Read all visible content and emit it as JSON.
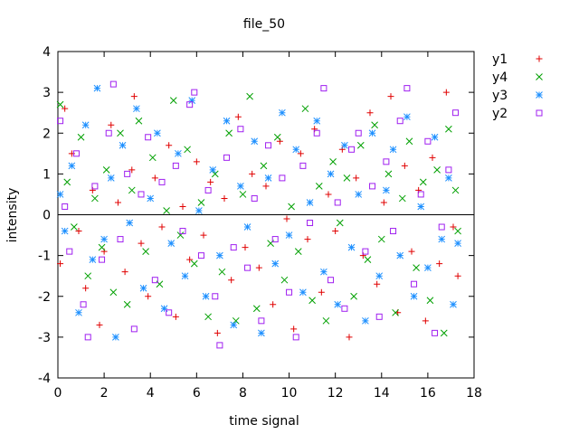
{
  "chart_data": {
    "type": "scatter",
    "title": "file_50",
    "xlabel": "time signal",
    "ylabel": "intensity",
    "xlim": [
      0,
      18
    ],
    "ylim": [
      -4,
      4
    ],
    "x_ticks": [
      0,
      2,
      4,
      6,
      8,
      10,
      12,
      14,
      16,
      18
    ],
    "y_ticks": [
      -4,
      -3,
      -2,
      -1,
      0,
      1,
      2,
      3,
      4
    ],
    "x_tick_labels": [
      "0",
      "2",
      "4",
      "6",
      "8",
      "10",
      "12",
      "14",
      "16",
      "18"
    ],
    "y_tick_labels": [
      "-4",
      "-3",
      "-2",
      "-1",
      "0",
      "1",
      "2",
      "3",
      "4"
    ],
    "zero_line": true,
    "grid": false,
    "legend_position": "outside-top-right",
    "series": [
      {
        "name": "y1",
        "color": "#e00000",
        "marker": "plus",
        "key": "y1"
      },
      {
        "name": "y4",
        "color": "#00a000",
        "marker": "cross",
        "key": "y4"
      },
      {
        "name": "y3",
        "color": "#1e90ff",
        "marker": "star",
        "key": "y3"
      },
      {
        "name": "y2",
        "color": "#a020f0",
        "marker": "square",
        "key": "y2"
      }
    ],
    "points": {
      "y1": [
        [
          0.1,
          -1.2
        ],
        [
          0.3,
          2.6
        ],
        [
          0.6,
          1.5
        ],
        [
          0.9,
          -0.4
        ],
        [
          1.2,
          -1.8
        ],
        [
          1.5,
          0.6
        ],
        [
          1.8,
          -2.7
        ],
        [
          2.0,
          -0.9
        ],
        [
          2.3,
          2.2
        ],
        [
          2.6,
          0.3
        ],
        [
          2.9,
          -1.4
        ],
        [
          3.2,
          1.1
        ],
        [
          3.3,
          2.9
        ],
        [
          3.6,
          -0.7
        ],
        [
          3.9,
          -2.0
        ],
        [
          4.2,
          0.9
        ],
        [
          4.5,
          -0.3
        ],
        [
          4.8,
          1.7
        ],
        [
          5.1,
          -2.5
        ],
        [
          5.4,
          0.2
        ],
        [
          5.7,
          -1.1
        ],
        [
          6.0,
          1.3
        ],
        [
          6.3,
          -0.5
        ],
        [
          6.6,
          0.8
        ],
        [
          6.9,
          -2.9
        ],
        [
          7.2,
          0.4
        ],
        [
          7.5,
          -1.6
        ],
        [
          7.8,
          2.4
        ],
        [
          8.1,
          -0.8
        ],
        [
          8.4,
          1.0
        ],
        [
          8.7,
          -1.3
        ],
        [
          9.0,
          0.7
        ],
        [
          9.3,
          -2.2
        ],
        [
          9.6,
          1.8
        ],
        [
          9.9,
          -0.1
        ],
        [
          10.2,
          -2.8
        ],
        [
          10.5,
          1.5
        ],
        [
          10.8,
          -0.6
        ],
        [
          11.1,
          2.1
        ],
        [
          11.4,
          -1.9
        ],
        [
          11.7,
          0.5
        ],
        [
          12.0,
          -0.4
        ],
        [
          12.3,
          1.6
        ],
        [
          12.6,
          -3.0
        ],
        [
          12.9,
          0.9
        ],
        [
          13.2,
          -1.0
        ],
        [
          13.5,
          2.5
        ],
        [
          13.8,
          -1.7
        ],
        [
          14.1,
          0.3
        ],
        [
          14.4,
          2.9
        ],
        [
          14.7,
          -2.4
        ],
        [
          15.0,
          1.2
        ],
        [
          15.3,
          -0.9
        ],
        [
          15.6,
          0.6
        ],
        [
          15.9,
          -2.6
        ],
        [
          16.2,
          1.4
        ],
        [
          16.5,
          -1.2
        ],
        [
          16.8,
          3.0
        ],
        [
          17.1,
          -0.3
        ],
        [
          17.3,
          -1.5
        ]
      ],
      "y4": [
        [
          0.1,
          2.7
        ],
        [
          0.4,
          0.8
        ],
        [
          0.7,
          -0.3
        ],
        [
          1.0,
          1.9
        ],
        [
          1.3,
          -1.5
        ],
        [
          1.6,
          0.4
        ],
        [
          1.9,
          -0.8
        ],
        [
          2.1,
          1.1
        ],
        [
          2.4,
          -1.9
        ],
        [
          2.7,
          2.0
        ],
        [
          3.0,
          -2.2
        ],
        [
          3.2,
          0.6
        ],
        [
          3.5,
          2.3
        ],
        [
          3.8,
          -0.9
        ],
        [
          4.1,
          1.4
        ],
        [
          4.4,
          -1.7
        ],
        [
          4.7,
          0.1
        ],
        [
          5.0,
          2.8
        ],
        [
          5.3,
          -0.5
        ],
        [
          5.6,
          1.6
        ],
        [
          5.9,
          -1.2
        ],
        [
          6.2,
          0.3
        ],
        [
          6.5,
          -2.5
        ],
        [
          6.8,
          1.0
        ],
        [
          7.1,
          -1.4
        ],
        [
          7.4,
          2.0
        ],
        [
          7.7,
          -2.6
        ],
        [
          8.0,
          0.5
        ],
        [
          8.3,
          2.9
        ],
        [
          8.6,
          -2.3
        ],
        [
          8.9,
          1.2
        ],
        [
          9.2,
          -0.7
        ],
        [
          9.5,
          1.9
        ],
        [
          9.8,
          -1.6
        ],
        [
          10.1,
          0.2
        ],
        [
          10.4,
          -0.9
        ],
        [
          10.7,
          2.6
        ],
        [
          11.0,
          -2.1
        ],
        [
          11.3,
          0.7
        ],
        [
          11.6,
          -2.6
        ],
        [
          11.9,
          1.3
        ],
        [
          12.2,
          -0.2
        ],
        [
          12.5,
          0.9
        ],
        [
          12.8,
          -2.0
        ],
        [
          13.1,
          1.7
        ],
        [
          13.4,
          -1.1
        ],
        [
          13.7,
          2.2
        ],
        [
          14.0,
          -0.6
        ],
        [
          14.3,
          1.0
        ],
        [
          14.6,
          -2.4
        ],
        [
          14.9,
          0.4
        ],
        [
          15.2,
          1.8
        ],
        [
          15.5,
          -1.3
        ],
        [
          15.8,
          0.8
        ],
        [
          16.1,
          -2.1
        ],
        [
          16.4,
          1.1
        ],
        [
          16.7,
          -2.9
        ],
        [
          16.9,
          2.1
        ],
        [
          17.2,
          0.6
        ],
        [
          17.3,
          -0.4
        ]
      ],
      "y3": [
        [
          0.1,
          0.5
        ],
        [
          0.3,
          -0.4
        ],
        [
          0.6,
          1.2
        ],
        [
          0.9,
          -2.4
        ],
        [
          1.2,
          2.2
        ],
        [
          1.5,
          -1.1
        ],
        [
          1.7,
          3.1
        ],
        [
          2.0,
          -0.6
        ],
        [
          2.3,
          0.9
        ],
        [
          2.5,
          -3.0
        ],
        [
          2.8,
          1.7
        ],
        [
          3.1,
          -0.2
        ],
        [
          3.4,
          2.6
        ],
        [
          3.7,
          -1.8
        ],
        [
          4.0,
          0.4
        ],
        [
          4.3,
          2.0
        ],
        [
          4.6,
          -2.3
        ],
        [
          4.9,
          -0.7
        ],
        [
          5.2,
          1.5
        ],
        [
          5.5,
          -1.5
        ],
        [
          5.8,
          2.8
        ],
        [
          6.1,
          0.1
        ],
        [
          6.4,
          -2.0
        ],
        [
          6.7,
          1.1
        ],
        [
          7.0,
          -1.0
        ],
        [
          7.3,
          2.3
        ],
        [
          7.6,
          -2.7
        ],
        [
          7.9,
          0.7
        ],
        [
          8.2,
          -0.3
        ],
        [
          8.5,
          1.8
        ],
        [
          8.8,
          -2.9
        ],
        [
          9.1,
          0.9
        ],
        [
          9.4,
          -1.2
        ],
        [
          9.7,
          2.5
        ],
        [
          10.0,
          -0.5
        ],
        [
          10.3,
          1.6
        ],
        [
          10.6,
          -1.9
        ],
        [
          10.9,
          0.3
        ],
        [
          11.2,
          2.3
        ],
        [
          11.5,
          -1.4
        ],
        [
          11.8,
          1.0
        ],
        [
          12.1,
          -2.2
        ],
        [
          12.4,
          1.7
        ],
        [
          12.7,
          -0.8
        ],
        [
          13.0,
          0.5
        ],
        [
          13.3,
          -2.6
        ],
        [
          13.6,
          2.0
        ],
        [
          13.9,
          -1.5
        ],
        [
          14.2,
          0.6
        ],
        [
          14.5,
          1.6
        ],
        [
          14.8,
          -1.0
        ],
        [
          15.1,
          2.4
        ],
        [
          15.4,
          -2.0
        ],
        [
          15.7,
          0.2
        ],
        [
          16.0,
          -1.3
        ],
        [
          16.3,
          1.9
        ],
        [
          16.6,
          -0.6
        ],
        [
          16.9,
          0.9
        ],
        [
          17.1,
          -2.2
        ],
        [
          17.3,
          -0.7
        ]
      ],
      "y2": [
        [
          0.1,
          2.3
        ],
        [
          0.3,
          0.2
        ],
        [
          0.5,
          -0.9
        ],
        [
          0.8,
          1.5
        ],
        [
          1.1,
          -2.2
        ],
        [
          1.3,
          -3.0
        ],
        [
          1.6,
          0.7
        ],
        [
          1.9,
          -1.1
        ],
        [
          2.2,
          2.0
        ],
        [
          2.4,
          3.2
        ],
        [
          2.7,
          -0.6
        ],
        [
          3.0,
          1.0
        ],
        [
          3.3,
          -2.8
        ],
        [
          3.6,
          0.5
        ],
        [
          3.9,
          1.9
        ],
        [
          4.2,
          -1.6
        ],
        [
          4.5,
          0.8
        ],
        [
          4.8,
          -2.4
        ],
        [
          5.1,
          1.2
        ],
        [
          5.4,
          -0.4
        ],
        [
          5.7,
          2.7
        ],
        [
          5.9,
          3.0
        ],
        [
          6.2,
          -1.0
        ],
        [
          6.5,
          0.6
        ],
        [
          6.8,
          -2.0
        ],
        [
          7.0,
          -3.2
        ],
        [
          7.3,
          1.4
        ],
        [
          7.6,
          -0.8
        ],
        [
          7.9,
          2.1
        ],
        [
          8.2,
          -1.3
        ],
        [
          8.5,
          0.4
        ],
        [
          8.8,
          -2.6
        ],
        [
          9.1,
          1.7
        ],
        [
          9.4,
          -0.6
        ],
        [
          9.7,
          0.9
        ],
        [
          10.0,
          -1.9
        ],
        [
          10.3,
          -3.0
        ],
        [
          10.6,
          1.2
        ],
        [
          10.9,
          -0.2
        ],
        [
          11.2,
          2.0
        ],
        [
          11.5,
          3.1
        ],
        [
          11.8,
          -1.6
        ],
        [
          12.1,
          0.3
        ],
        [
          12.4,
          -2.3
        ],
        [
          12.7,
          1.6
        ],
        [
          13.0,
          2.0
        ],
        [
          13.3,
          -0.9
        ],
        [
          13.6,
          0.7
        ],
        [
          13.9,
          -2.5
        ],
        [
          14.2,
          1.3
        ],
        [
          14.5,
          -0.4
        ],
        [
          14.8,
          2.3
        ],
        [
          15.1,
          3.1
        ],
        [
          15.4,
          -1.7
        ],
        [
          15.7,
          0.5
        ],
        [
          16.0,
          1.8
        ],
        [
          16.3,
          -2.9
        ],
        [
          16.6,
          -0.3
        ],
        [
          16.9,
          1.1
        ],
        [
          17.2,
          2.5
        ]
      ]
    }
  }
}
